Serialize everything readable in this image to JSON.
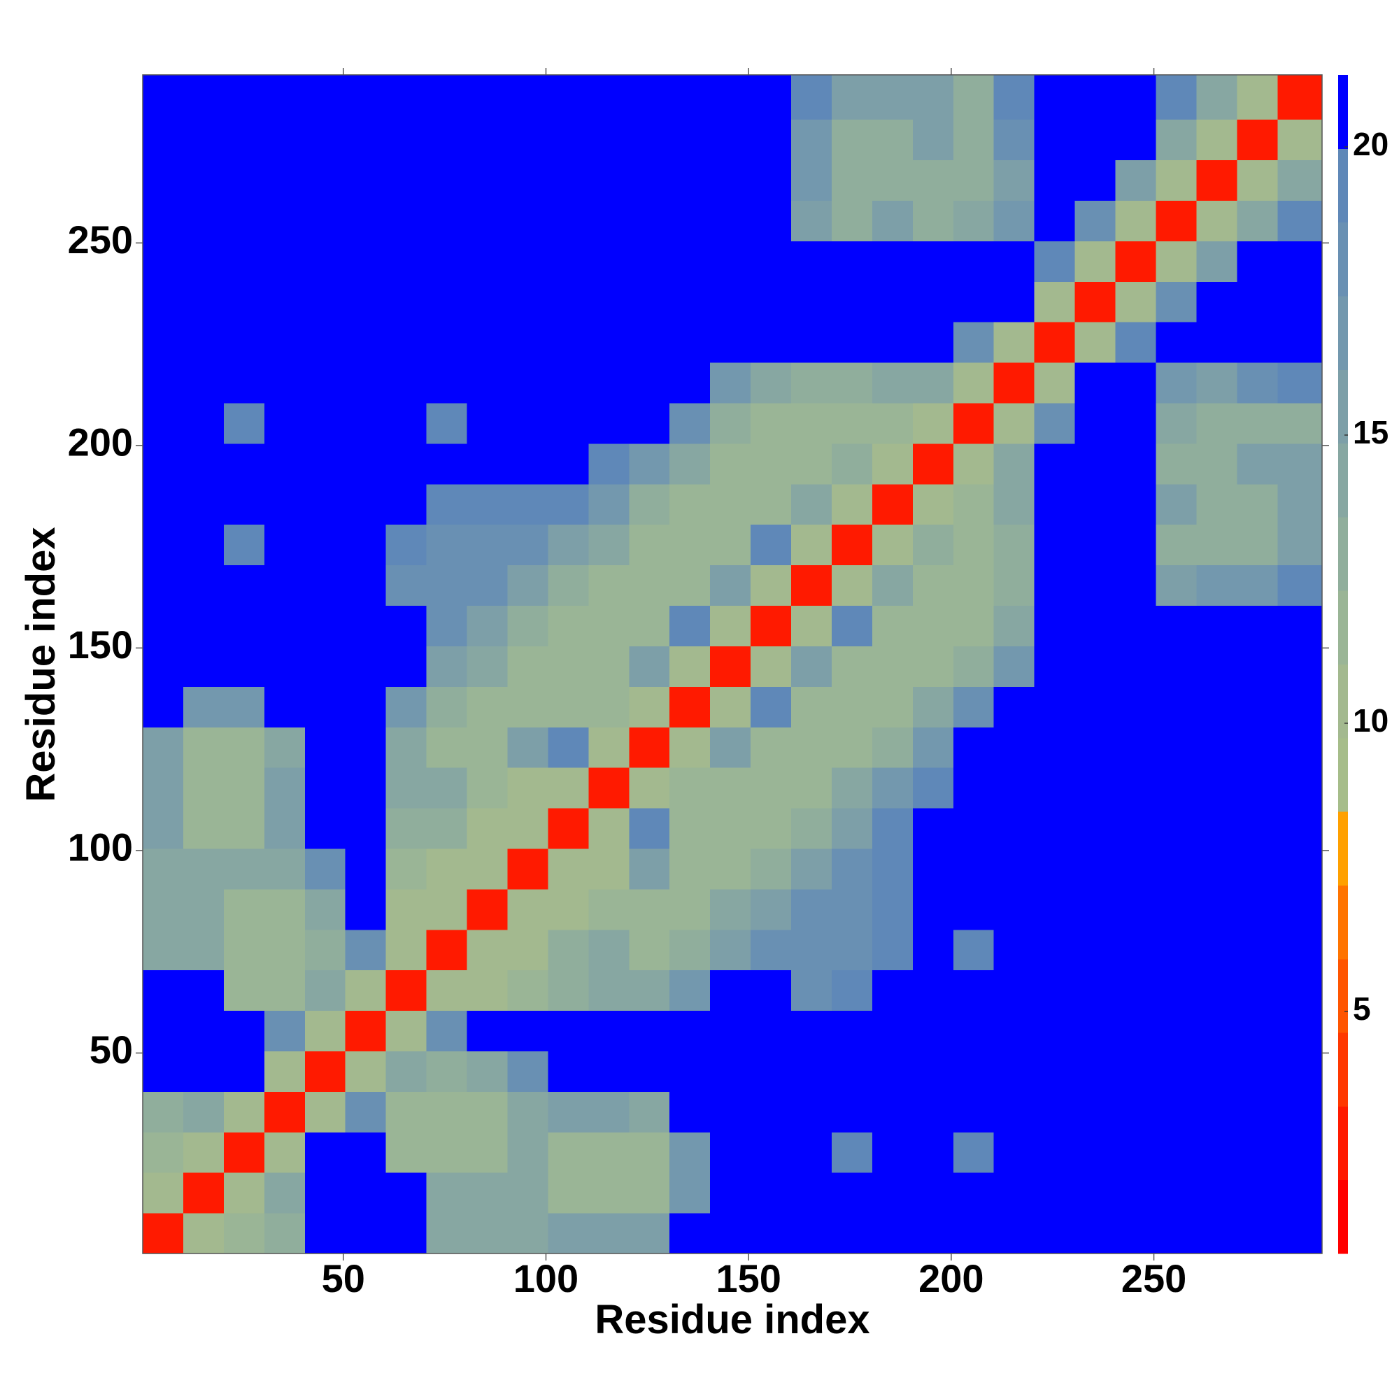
{
  "chart_data": {
    "type": "heatmap",
    "xlabel": "Residue index",
    "ylabel": "Residue index",
    "xlim": [
      0.5,
      291.5
    ],
    "ylim": [
      0.5,
      291.5
    ],
    "xticks": [
      50,
      100,
      150,
      200,
      250
    ],
    "yticks": [
      50,
      100,
      150,
      200,
      250
    ],
    "bins": [
      0.5,
      10.5,
      20.5,
      30.5,
      40.5,
      50.5,
      60.5,
      70.5,
      80.5,
      90.5,
      100.5,
      110.5,
      120.5,
      130.5,
      140.5,
      150.5,
      160.5,
      170.5,
      180.5,
      190.5,
      200.5,
      210.5,
      220.5,
      230.5,
      240.5,
      250.5,
      260.5,
      270.5,
      280.5,
      291.5
    ],
    "symmetric": true,
    "z": [
      [
        3,
        11,
        12,
        13,
        21,
        21,
        20,
        14,
        14,
        14,
        16,
        15,
        16,
        21,
        21,
        21,
        21,
        21,
        21,
        21,
        21,
        21,
        21,
        21,
        21,
        21,
        21,
        21,
        21
      ],
      [
        3,
        11,
        14,
        21,
        21,
        20,
        14,
        14,
        14,
        12,
        12,
        12,
        17,
        21,
        21,
        21,
        21,
        21,
        21,
        21,
        21,
        21,
        21,
        21,
        21,
        21,
        21,
        21
      ],
      [
        3,
        11,
        21,
        21,
        12,
        12,
        12,
        14,
        12,
        12,
        12,
        17,
        21,
        21,
        21,
        19,
        21,
        21,
        19,
        21,
        21,
        21,
        21,
        21,
        21,
        21,
        21
      ],
      [
        3,
        11,
        18,
        12,
        12,
        12,
        14,
        16,
        16,
        14,
        21,
        21,
        21,
        21,
        21,
        21,
        21,
        21,
        21,
        21,
        21,
        21,
        21,
        21,
        21,
        21
      ],
      [
        3,
        10,
        14,
        13,
        14,
        18,
        21,
        21,
        21,
        21,
        21,
        21,
        21,
        21,
        21,
        21,
        21,
        21,
        21,
        21,
        21,
        21,
        21,
        21,
        21
      ],
      [
        3,
        10,
        18,
        21,
        21,
        21,
        21,
        21,
        21,
        21,
        21,
        21,
        21,
        21,
        21,
        21,
        21,
        21,
        21,
        21,
        21,
        21,
        21,
        21
      ],
      [
        3,
        10,
        11,
        12,
        13,
        14,
        14,
        17,
        21,
        21,
        18,
        19,
        21,
        21,
        21,
        21,
        21,
        21,
        21,
        21,
        21,
        21,
        21
      ],
      [
        3,
        10,
        11,
        13,
        14,
        12,
        13,
        16,
        18,
        18,
        18,
        19,
        21,
        19,
        21,
        21,
        21,
        21,
        21,
        21,
        21,
        21
      ],
      [
        3,
        10,
        11,
        12,
        12,
        12,
        14,
        16,
        18,
        18,
        19,
        21,
        21,
        21,
        21,
        21,
        21,
        21,
        21,
        21,
        21
      ],
      [
        3,
        10,
        11,
        16,
        12,
        12,
        13,
        15,
        18,
        19,
        21,
        21,
        21,
        21,
        21,
        21,
        21,
        21,
        21,
        21
      ],
      [
        3,
        10,
        19,
        12,
        12,
        12,
        13,
        16,
        19,
        21,
        21,
        21,
        21,
        21,
        21,
        21,
        21,
        21,
        21
      ],
      [
        3,
        10,
        12,
        12,
        12,
        12,
        14,
        17,
        19,
        21,
        21,
        21,
        21,
        21,
        21,
        21,
        21,
        21
      ],
      [
        3,
        10,
        16,
        12,
        12,
        12,
        13,
        17,
        21,
        21,
        21,
        21,
        21,
        21,
        21,
        21,
        21
      ],
      [
        3,
        10,
        19,
        12,
        12,
        12,
        14,
        18,
        21,
        21,
        21,
        21,
        21,
        21,
        21,
        21
      ],
      [
        3,
        10,
        15,
        12,
        12,
        12,
        13,
        17,
        21,
        21,
        21,
        21,
        21,
        21,
        21
      ],
      [
        3,
        10,
        19,
        12,
        12,
        12,
        14,
        21,
        21,
        21,
        21,
        21,
        21,
        21
      ],
      [
        3,
        10,
        14,
        12,
        12,
        13,
        21,
        21,
        21,
        16,
        17,
        17,
        19
      ],
      [
        3,
        10,
        13,
        12,
        13,
        21,
        21,
        21,
        13,
        13,
        13,
        16
      ],
      [
        3,
        10,
        12,
        14,
        21,
        21,
        21,
        16,
        13,
        13,
        16
      ],
      [
        3,
        10,
        14,
        21,
        21,
        21,
        13,
        13,
        15,
        15
      ],
      [
        3,
        10,
        18,
        21,
        21,
        14,
        13,
        13,
        13
      ],
      [
        3,
        10,
        21,
        21,
        17,
        16,
        18,
        19
      ],
      [
        3,
        11,
        19,
        21,
        21,
        21,
        21
      ],
      [
        3,
        11,
        18,
        21,
        21,
        21
      ],
      [
        3,
        11,
        15,
        21,
        21
      ],
      [
        3,
        11,
        14,
        19
      ],
      [
        3,
        11,
        14
      ],
      [
        3,
        11
      ],
      [
        3
      ]
    ],
    "colorbar": {
      "lim": [
        0.8,
        21.25
      ],
      "ticks": [
        5,
        10,
        15,
        20
      ],
      "colors": [
        "#ff0000",
        "#ff1a00",
        "#ff3800",
        "#ff5500",
        "#ff7400",
        "#ffa000",
        "#a6bd8a",
        "#a3b98f",
        "#9ab596",
        "#90ae9c",
        "#87a7a2",
        "#7d9fa8",
        "#7398ae",
        "#6990b3",
        "#5f88b8",
        "#0000ff"
      ]
    }
  }
}
